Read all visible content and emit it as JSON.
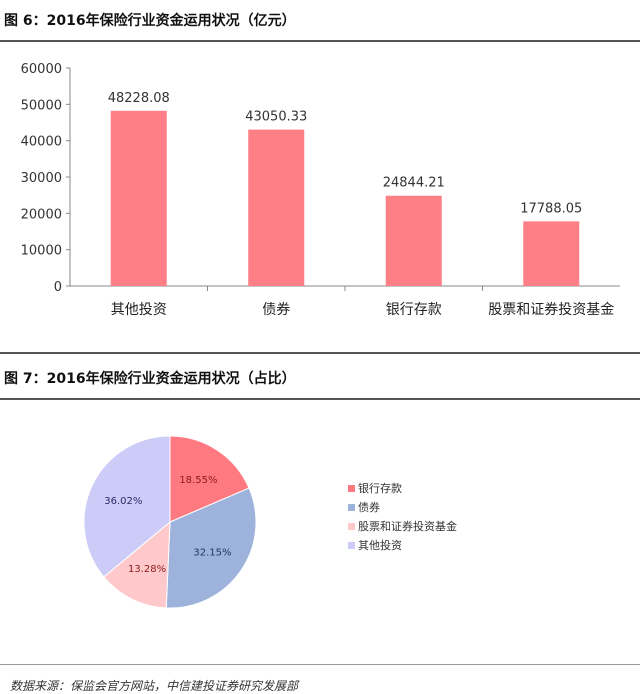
{
  "chart_data": [
    {
      "type": "bar",
      "title": "图 6：2016年保险行业资金运用状况（亿元）",
      "categories": [
        "其他投资",
        "债券",
        "银行存款",
        "股票和证券投资基金"
      ],
      "values": [
        48228.08,
        43050.33,
        24844.21,
        17788.05
      ],
      "data_labels": [
        "48228.08",
        "43050.33",
        "24844.21",
        "17788.05"
      ],
      "ylim": [
        0,
        60000
      ],
      "yticks": [
        "0",
        "10000",
        "20000",
        "30000",
        "40000",
        "50000",
        "60000"
      ],
      "grid": false,
      "color": "#ff7f86"
    },
    {
      "type": "pie",
      "title": "图 7：2016年保险行业资金运用状况（占比）",
      "categories": [
        "银行存款",
        "债券",
        "股票和证券投资基金",
        "其他投资"
      ],
      "values": [
        18.55,
        32.15,
        13.28,
        36.02
      ],
      "data_labels": [
        "18.55%",
        "32.15%",
        "13.28%",
        "36.02%"
      ],
      "colors": [
        "#ff7a80",
        "#9db3dc",
        "#ffc9cc",
        "#cdcbf7"
      ],
      "label_colors": [
        "#8b1a1a",
        "#1f3864",
        "#8b1a1a",
        "#2a2a6a"
      ],
      "legend": "right"
    }
  ],
  "source": "数据来源：保监会官方网站，中信建投证券研究发展部"
}
